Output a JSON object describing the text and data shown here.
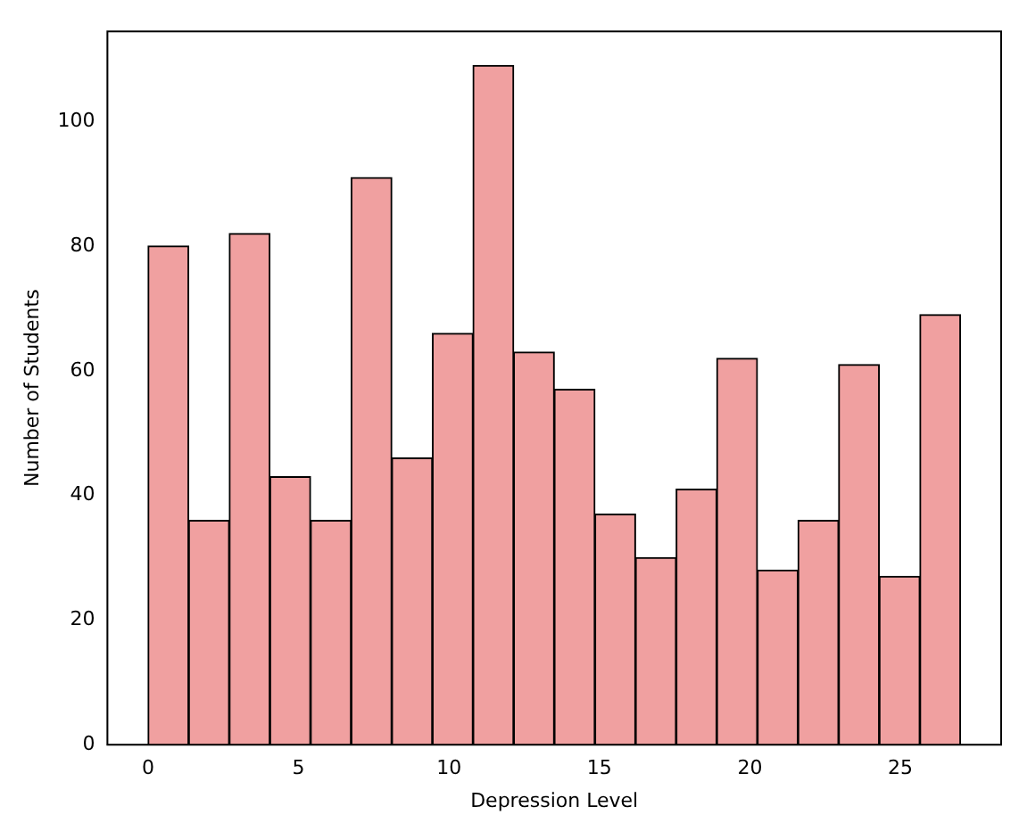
{
  "chart_data": {
    "type": "histogram",
    "xlabel": "Depression Level",
    "ylabel": "Number of Students",
    "bins": [
      0,
      1.35,
      2.7,
      4.05,
      5.4,
      6.75,
      8.1,
      9.45,
      10.8,
      12.15,
      13.5,
      14.85,
      16.2,
      17.55,
      18.9,
      20.25,
      21.6,
      22.95,
      24.3,
      25.65,
      27
    ],
    "values": [
      80,
      36,
      82,
      43,
      36,
      91,
      46,
      66,
      109,
      63,
      57,
      37,
      30,
      41,
      62,
      28,
      36,
      61,
      27,
      69
    ],
    "color": "#f0a0a0",
    "xlim": [
      -1.35,
      28.35
    ],
    "ylim": [
      0,
      114.45
    ],
    "xticks": [
      0,
      5,
      10,
      15,
      20,
      25
    ],
    "yticks": [
      0,
      20,
      40,
      60,
      80,
      100
    ],
    "grid": false,
    "legend": false
  }
}
